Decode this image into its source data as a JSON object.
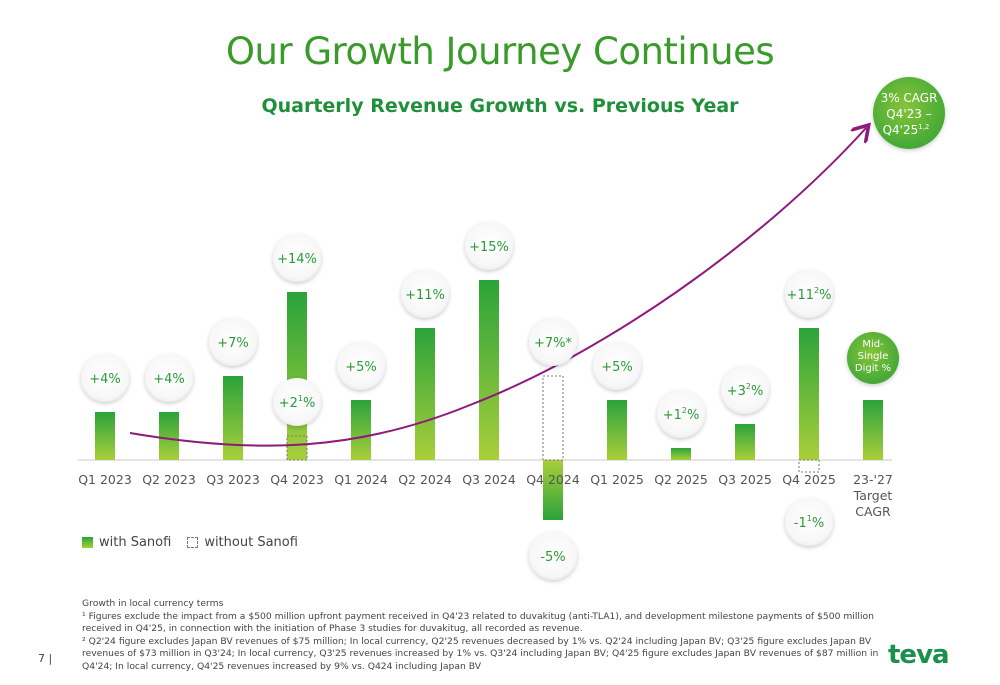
{
  "header": {
    "title": "Our Growth Journey Continues",
    "subtitle": "Quarterly Revenue Growth vs. Previous Year"
  },
  "colors": {
    "bar_top": "#2aa33a",
    "bar_bottom": "#a9cf3a",
    "arrow": "#8e1a7c",
    "label": "#2b9a3a"
  },
  "chart_data": {
    "type": "bar",
    "categories": [
      "Q1 2023",
      "Q2 2023",
      "Q3 2023",
      "Q4 2023",
      "Q1 2024",
      "Q2 2024",
      "Q3 2024",
      "Q4 2024",
      "Q1 2025",
      "Q2 2025",
      "Q3 2025",
      "Q4 2025",
      "23-'27 Target CAGR"
    ],
    "series": [
      {
        "name": "with Sanofi",
        "values": [
          4,
          4,
          7,
          14,
          5,
          11,
          15,
          -5,
          5,
          1,
          3,
          11,
          5
        ]
      },
      {
        "name": "without Sanofi",
        "values": [
          null,
          null,
          null,
          2,
          null,
          null,
          null,
          7,
          null,
          null,
          null,
          -1,
          null
        ]
      }
    ],
    "labels": [
      {
        "main": "+4%"
      },
      {
        "main": "+4%"
      },
      {
        "main": "+7%"
      },
      {
        "main": "+14%",
        "alt": "+2%",
        "alt_sup": "1"
      },
      {
        "main": "+5%"
      },
      {
        "main": "+11%"
      },
      {
        "main": "+15%"
      },
      {
        "main": "-5%",
        "alt": "+7%*"
      },
      {
        "main": "+5%"
      },
      {
        "main": "+1%",
        "main_sup": "2"
      },
      {
        "main": "+3%",
        "main_sup": "2"
      },
      {
        "main": "+11%",
        "main_sup": "2",
        "alt": "-1%",
        "alt_sup": "1"
      },
      {
        "main": "Mid-Single Digit %"
      }
    ],
    "callout": {
      "line1": "3% CAGR",
      "line2": "Q4'23 –",
      "line3": "Q4'25",
      "sup": "1,2"
    },
    "legend": [
      "with Sanofi",
      "without Sanofi"
    ]
  },
  "footnotes": [
    "Growth in local currency terms",
    "¹ Figures exclude the impact from a $500 million upfront payment received in Q4'23 related to duvakitug (anti-TLA1), and development milestone payments of $500 million received in Q4'25, in connection with the initiation of Phase 3 studies for duvakitug, all recorded as revenue.",
    "² Q2'24 figure excludes Japan BV revenues of $75 million; In local currency, Q2'25 revenues decreased by 1% vs. Q2'24 including Japan BV; Q3'25 figure excludes Japan BV revenues of $73 million in Q3'24; In local currency, Q3'25 revenues increased by 1% vs. Q3'24 including Japan BV; Q4'25 figure excludes Japan BV revenues of $87 million in Q4'24; In local currency, Q4'25 revenues increased by 9% vs. Q424 including Japan BV"
  ],
  "page_number": "7 |",
  "logo_text": "teva"
}
